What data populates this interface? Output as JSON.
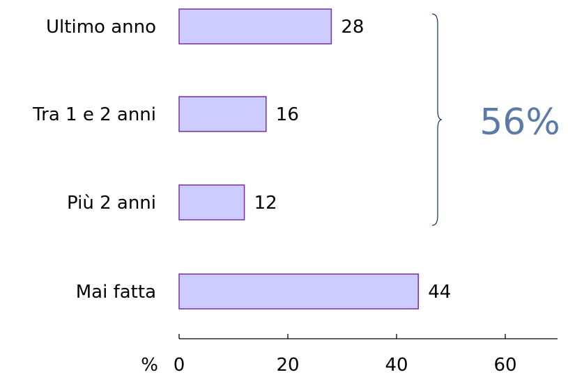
{
  "chart_data": {
    "type": "bar",
    "orientation": "horizontal",
    "categories": [
      "Ultimo anno",
      "Tra 1 e 2 anni",
      "Più 2 anni",
      "Mai fatta"
    ],
    "values": [
      28,
      16,
      12,
      44
    ],
    "xlim": [
      0,
      72
    ],
    "xticks": [
      0,
      20,
      40,
      60
    ],
    "x_unit_label": "%",
    "grid": false,
    "bar_fill": "#ccccff",
    "bar_stroke": "#7a2e9c",
    "annotation": {
      "text": "56%",
      "spans_categories": [
        "Ultimo anno",
        "Tra 1 e 2 anni",
        "Più 2 anni"
      ],
      "color": "#5b7aa8"
    }
  }
}
